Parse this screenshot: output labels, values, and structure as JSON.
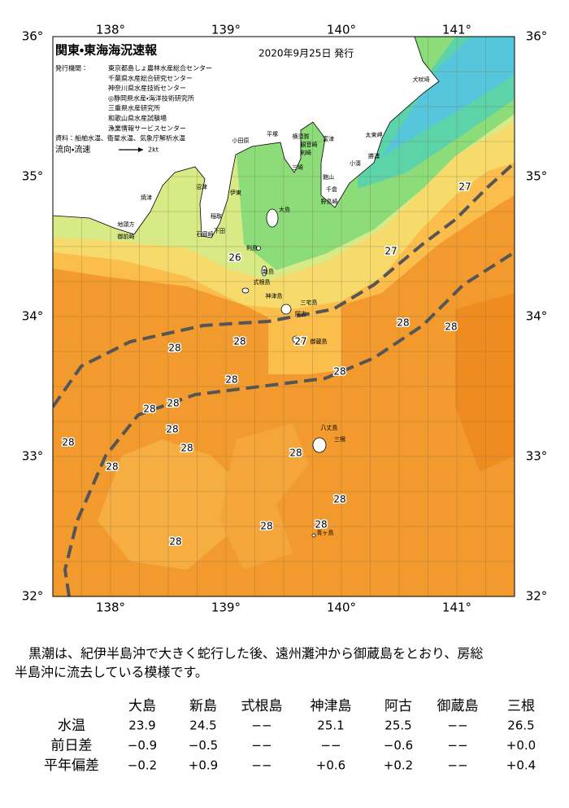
{
  "header": {
    "title": "関東・東海海況速報",
    "date": "2020年9月25日 発行"
  },
  "issuers": {
    "label": "発行機関：",
    "names": [
      "東京都島しょ農林水産総合センター",
      "千葉県水産総合研究センター",
      "神奈川県水産技術センター",
      "◎静岡県水産・海洋技術研究所",
      "三重県水産研究所",
      "和歌山県水産試験場",
      "漁業情報サービスセンター"
    ]
  },
  "sources": "資料：船舶水温、衛星水温、気象庁解析水温",
  "legend": {
    "label": "流向・流速",
    "speed": "2kt"
  },
  "map": {
    "lon_labels": [
      "138°",
      "139°",
      "140°",
      "141°"
    ],
    "lat_labels": [
      "36°",
      "35°",
      "34°",
      "33°",
      "32°"
    ],
    "temperature_labels": [
      "27",
      "27",
      "26",
      "27",
      "28",
      "28",
      "28",
      "28",
      "28",
      "28",
      "28",
      "28",
      "28",
      "28",
      "28",
      "28",
      "28",
      "28",
      "28",
      "28",
      "28"
    ],
    "place_labels": [
      "犬吠埼",
      "太東岬",
      "勝浦",
      "小湊",
      "富津",
      "横須賀",
      "平塚",
      "観音崎",
      "剣崎",
      "三崎",
      "館山",
      "千倉",
      "野島崎",
      "小田原",
      "伊東",
      "大島",
      "稲取",
      "下田",
      "石廊崎",
      "利島",
      "新島",
      "式根島",
      "神津島",
      "三宅島",
      "阿古",
      "御蔵島",
      "八丈島",
      "三根",
      "青ヶ島",
      "沼津",
      "焼津",
      "地頭方",
      "御前崎"
    ]
  },
  "description": {
    "lines": [
      "黒潮は、紀伊半島沖で大きく蛇行した後、遠州灘沖から御蔵島をとおり、房総",
      "半島沖に流去している模様です。"
    ]
  },
  "table": {
    "columns": [
      "大島",
      "新島",
      "式根島",
      "神津島",
      "阿古",
      "御蔵島",
      "三根"
    ],
    "rows": [
      {
        "label": "水温",
        "values": [
          "23.9",
          "24.5",
          "−−",
          "25.1",
          "25.5",
          "−−",
          "26.5"
        ]
      },
      {
        "label": "前日差",
        "values": [
          "−0.9",
          "−0.5",
          "−−",
          "−−",
          "−0.6",
          "−−",
          "+0.0"
        ]
      },
      {
        "label": "平年偏差",
        "values": [
          "−0.2",
          "+0.9",
          "−−",
          "+0.6",
          "+0.2",
          "−−",
          "+0.4"
        ]
      }
    ]
  }
}
